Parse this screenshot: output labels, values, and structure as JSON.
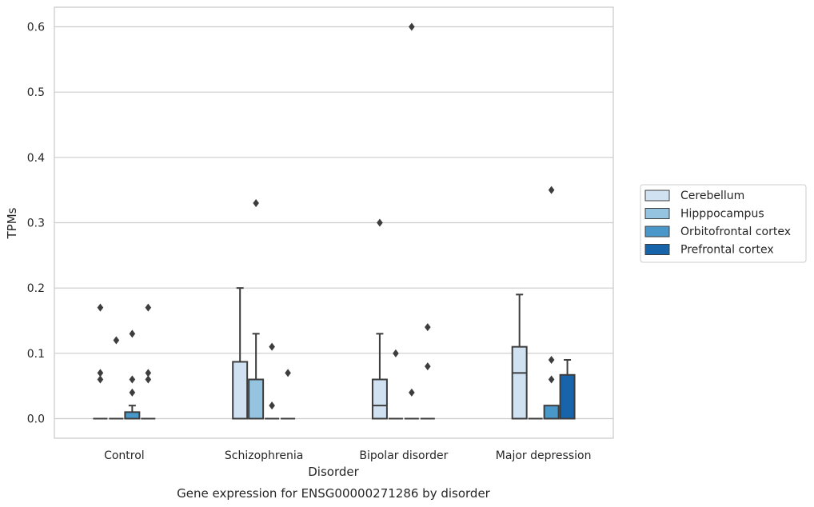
{
  "chart_data": {
    "type": "box",
    "title": "",
    "caption": "Gene expression for ENSG00000271286 by disorder",
    "xlabel": "Disorder",
    "ylabel": "TPMs",
    "ylim": [
      -0.03,
      0.63
    ],
    "yticks": [
      0.0,
      0.1,
      0.2,
      0.3,
      0.4,
      0.5,
      0.6
    ],
    "ytick_labels": [
      "0.0",
      "0.1",
      "0.2",
      "0.3",
      "0.4",
      "0.5",
      "0.6"
    ],
    "grid": "horizontal",
    "legend_position": "right",
    "categories": [
      "Control",
      "Schizophrenia",
      "Bipolar disorder",
      "Major depression"
    ],
    "series": [
      {
        "name": "Cerebellum",
        "color": "#d0e1f2",
        "boxes": [
          {
            "q1": 0.0,
            "median": 0.0,
            "q3": 0.0,
            "whisker_low": 0.0,
            "whisker_high": 0.0,
            "outliers": [
              0.17,
              0.07,
              0.06
            ]
          },
          {
            "q1": 0.0,
            "median": 0.0,
            "q3": 0.087,
            "whisker_low": 0.0,
            "whisker_high": 0.2,
            "outliers": []
          },
          {
            "q1": 0.0,
            "median": 0.02,
            "q3": 0.06,
            "whisker_low": 0.0,
            "whisker_high": 0.13,
            "outliers": [
              0.3
            ]
          },
          {
            "q1": 0.0,
            "median": 0.07,
            "q3": 0.11,
            "whisker_low": 0.0,
            "whisker_high": 0.19,
            "outliers": []
          }
        ]
      },
      {
        "name": "Hipppocampus",
        "color": "#94c4df",
        "boxes": [
          {
            "q1": 0.0,
            "median": 0.0,
            "q3": 0.0,
            "whisker_low": 0.0,
            "whisker_high": 0.0,
            "outliers": [
              0.12
            ]
          },
          {
            "q1": 0.0,
            "median": 0.0,
            "q3": 0.06,
            "whisker_low": 0.0,
            "whisker_high": 0.13,
            "outliers": [
              0.33
            ]
          },
          {
            "q1": 0.0,
            "median": 0.0,
            "q3": 0.0,
            "whisker_low": 0.0,
            "whisker_high": 0.0,
            "outliers": [
              0.1
            ]
          },
          {
            "q1": 0.0,
            "median": 0.0,
            "q3": 0.0,
            "whisker_low": 0.0,
            "whisker_high": 0.0,
            "outliers": []
          }
        ]
      },
      {
        "name": "Orbitofrontal cortex",
        "color": "#4a98c9",
        "boxes": [
          {
            "q1": 0.0,
            "median": 0.0,
            "q3": 0.01,
            "whisker_low": 0.0,
            "whisker_high": 0.02,
            "outliers": [
              0.13,
              0.06,
              0.04
            ]
          },
          {
            "q1": 0.0,
            "median": 0.0,
            "q3": 0.0,
            "whisker_low": 0.0,
            "whisker_high": 0.0,
            "outliers": [
              0.11,
              0.02
            ]
          },
          {
            "q1": 0.0,
            "median": 0.0,
            "q3": 0.0,
            "whisker_low": 0.0,
            "whisker_high": 0.0,
            "outliers": [
              0.6,
              0.04
            ]
          },
          {
            "q1": 0.0,
            "median": 0.0,
            "q3": 0.02,
            "whisker_low": 0.0,
            "whisker_high": 0.02,
            "outliers": [
              0.35,
              0.09,
              0.06
            ]
          }
        ]
      },
      {
        "name": "Prefrontal cortex",
        "color": "#1764ab",
        "boxes": [
          {
            "q1": 0.0,
            "median": 0.0,
            "q3": 0.0,
            "whisker_low": 0.0,
            "whisker_high": 0.0,
            "outliers": [
              0.17,
              0.07,
              0.06
            ]
          },
          {
            "q1": 0.0,
            "median": 0.0,
            "q3": 0.0,
            "whisker_low": 0.0,
            "whisker_high": 0.0,
            "outliers": [
              0.07
            ]
          },
          {
            "q1": 0.0,
            "median": 0.0,
            "q3": 0.0,
            "whisker_low": 0.0,
            "whisker_high": 0.0,
            "outliers": [
              0.14,
              0.08
            ]
          },
          {
            "q1": 0.0,
            "median": 0.0,
            "q3": 0.067,
            "whisker_low": 0.0,
            "whisker_high": 0.09,
            "outliers": []
          }
        ]
      }
    ]
  }
}
